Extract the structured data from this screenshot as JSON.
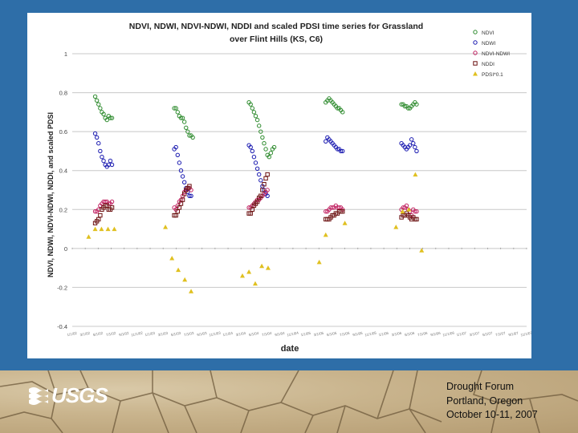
{
  "footer": {
    "logo_text": "USGS",
    "lines": [
      "Drought Forum",
      "Portland, Oregon",
      "October 10-11, 2007"
    ]
  },
  "chart_data": {
    "type": "scatter",
    "title_lines": [
      "NDVI, NDWI, NDVI-NDWI, NDDI and scaled PDSI time series for Grassland",
      "over Flint Hills (KS, C6)"
    ],
    "xlabel": "date",
    "ylabel": "NDVI, NDWI, NDVI-NDWI, NDDI, and scaled PDSI",
    "ylim": [
      -0.4,
      1.0
    ],
    "y_ticks": [
      1,
      0.8,
      0.6,
      0.4,
      0.2,
      0,
      -0.2,
      -0.4
    ],
    "y_tick_labels": [
      "1",
      "0.8",
      "0.6",
      "0.4",
      "0.2",
      "0",
      "-0.2",
      "-0.4"
    ],
    "grid": "horizontal",
    "legend_position": "top-right",
    "x_ticks": [
      "1/1/02",
      "3/1/02",
      "5/1/02",
      "7/1/02",
      "9/1/02",
      "11/1/02",
      "1/1/03",
      "3/1/03",
      "5/1/03",
      "7/1/03",
      "9/1/03",
      "11/1/03",
      "1/1/04",
      "3/1/04",
      "5/1/04",
      "7/1/04",
      "9/1/04",
      "11/1/04",
      "1/1/05",
      "3/1/05",
      "5/1/05",
      "7/1/05",
      "9/1/05",
      "11/1/05",
      "1/1/06",
      "3/1/06",
      "5/1/06",
      "7/1/06",
      "9/1/06",
      "11/1/06",
      "1/1/07",
      "3/1/07",
      "5/1/07",
      "7/1/07",
      "9/1/07",
      "11/1/07"
    ],
    "series": [
      {
        "name": "NDVI",
        "marker": "circle",
        "color": "#2e8b2e",
        "points": [
          [
            "2002-04-20",
            0.78
          ],
          [
            "2002-04-28",
            0.76
          ],
          [
            "2002-05-06",
            0.74
          ],
          [
            "2002-05-14",
            0.72
          ],
          [
            "2002-05-22",
            0.7
          ],
          [
            "2002-05-30",
            0.69
          ],
          [
            "2002-06-07",
            0.67
          ],
          [
            "2002-06-15",
            0.66
          ],
          [
            "2002-06-23",
            0.68
          ],
          [
            "2002-07-01",
            0.67
          ],
          [
            "2002-07-09",
            0.67
          ],
          [
            "2003-05-01",
            0.72
          ],
          [
            "2003-05-09",
            0.72
          ],
          [
            "2003-05-17",
            0.7
          ],
          [
            "2003-05-25",
            0.68
          ],
          [
            "2003-06-02",
            0.67
          ],
          [
            "2003-06-10",
            0.67
          ],
          [
            "2003-06-18",
            0.65
          ],
          [
            "2003-06-26",
            0.62
          ],
          [
            "2003-07-04",
            0.6
          ],
          [
            "2003-07-12",
            0.58
          ],
          [
            "2003-07-20",
            0.58
          ],
          [
            "2003-07-28",
            0.57
          ],
          [
            "2004-04-20",
            0.75
          ],
          [
            "2004-04-28",
            0.74
          ],
          [
            "2004-05-06",
            0.72
          ],
          [
            "2004-05-14",
            0.7
          ],
          [
            "2004-05-22",
            0.68
          ],
          [
            "2004-05-30",
            0.66
          ],
          [
            "2004-06-07",
            0.63
          ],
          [
            "2004-06-15",
            0.6
          ],
          [
            "2004-06-23",
            0.57
          ],
          [
            "2004-07-01",
            0.54
          ],
          [
            "2004-07-09",
            0.51
          ],
          [
            "2004-07-17",
            0.48
          ],
          [
            "2004-07-25",
            0.47
          ],
          [
            "2004-08-02",
            0.49
          ],
          [
            "2004-08-10",
            0.51
          ],
          [
            "2004-08-18",
            0.52
          ],
          [
            "2005-04-20",
            0.75
          ],
          [
            "2005-04-28",
            0.76
          ],
          [
            "2005-05-06",
            0.77
          ],
          [
            "2005-05-14",
            0.76
          ],
          [
            "2005-05-22",
            0.75
          ],
          [
            "2005-05-30",
            0.74
          ],
          [
            "2005-06-07",
            0.73
          ],
          [
            "2005-06-15",
            0.72
          ],
          [
            "2005-06-23",
            0.72
          ],
          [
            "2005-07-01",
            0.71
          ],
          [
            "2005-07-09",
            0.7
          ],
          [
            "2006-04-15",
            0.74
          ],
          [
            "2006-04-23",
            0.74
          ],
          [
            "2006-05-01",
            0.73
          ],
          [
            "2006-05-09",
            0.73
          ],
          [
            "2006-05-17",
            0.72
          ],
          [
            "2006-05-25",
            0.72
          ],
          [
            "2006-06-02",
            0.73
          ],
          [
            "2006-06-10",
            0.74
          ],
          [
            "2006-06-18",
            0.75
          ],
          [
            "2006-06-26",
            0.74
          ]
        ]
      },
      {
        "name": "NDWI",
        "marker": "circle",
        "color": "#1a1ab0",
        "points": [
          [
            "2002-04-20",
            0.59
          ],
          [
            "2002-04-28",
            0.57
          ],
          [
            "2002-05-06",
            0.54
          ],
          [
            "2002-05-14",
            0.5
          ],
          [
            "2002-05-22",
            0.47
          ],
          [
            "2002-05-30",
            0.45
          ],
          [
            "2002-06-07",
            0.43
          ],
          [
            "2002-06-15",
            0.42
          ],
          [
            "2002-06-23",
            0.43
          ],
          [
            "2002-07-01",
            0.45
          ],
          [
            "2002-07-09",
            0.43
          ],
          [
            "2003-05-01",
            0.51
          ],
          [
            "2003-05-09",
            0.52
          ],
          [
            "2003-05-17",
            0.48
          ],
          [
            "2003-05-25",
            0.44
          ],
          [
            "2003-06-02",
            0.4
          ],
          [
            "2003-06-10",
            0.37
          ],
          [
            "2003-06-18",
            0.34
          ],
          [
            "2003-06-26",
            0.31
          ],
          [
            "2003-07-04",
            0.29
          ],
          [
            "2003-07-12",
            0.27
          ],
          [
            "2003-07-20",
            0.27
          ],
          [
            "2004-04-20",
            0.53
          ],
          [
            "2004-04-28",
            0.52
          ],
          [
            "2004-05-06",
            0.5
          ],
          [
            "2004-05-14",
            0.47
          ],
          [
            "2004-05-22",
            0.44
          ],
          [
            "2004-05-30",
            0.41
          ],
          [
            "2004-06-07",
            0.38
          ],
          [
            "2004-06-15",
            0.35
          ],
          [
            "2004-06-23",
            0.32
          ],
          [
            "2004-07-01",
            0.3
          ],
          [
            "2004-07-09",
            0.28
          ],
          [
            "2004-07-17",
            0.27
          ],
          [
            "2005-04-20",
            0.55
          ],
          [
            "2005-04-28",
            0.57
          ],
          [
            "2005-05-06",
            0.56
          ],
          [
            "2005-05-14",
            0.55
          ],
          [
            "2005-05-22",
            0.54
          ],
          [
            "2005-05-30",
            0.53
          ],
          [
            "2005-06-07",
            0.52
          ],
          [
            "2005-06-15",
            0.51
          ],
          [
            "2005-06-23",
            0.51
          ],
          [
            "2005-07-01",
            0.5
          ],
          [
            "2005-07-09",
            0.5
          ],
          [
            "2006-04-15",
            0.54
          ],
          [
            "2006-04-23",
            0.53
          ],
          [
            "2006-05-01",
            0.52
          ],
          [
            "2006-05-09",
            0.51
          ],
          [
            "2006-05-17",
            0.52
          ],
          [
            "2006-05-25",
            0.53
          ],
          [
            "2006-06-02",
            0.56
          ],
          [
            "2006-06-10",
            0.54
          ],
          [
            "2006-06-18",
            0.52
          ],
          [
            "2006-06-26",
            0.5
          ]
        ]
      },
      {
        "name": "NDVI-NDWI",
        "marker": "circle",
        "color": "#c02060",
        "points": [
          [
            "2002-04-20",
            0.19
          ],
          [
            "2002-04-28",
            0.19
          ],
          [
            "2002-05-06",
            0.2
          ],
          [
            "2002-05-14",
            0.22
          ],
          [
            "2002-05-22",
            0.23
          ],
          [
            "2002-05-30",
            0.24
          ],
          [
            "2002-06-07",
            0.24
          ],
          [
            "2002-06-15",
            0.24
          ],
          [
            "2002-06-23",
            0.23
          ],
          [
            "2002-07-01",
            0.23
          ],
          [
            "2002-07-09",
            0.24
          ],
          [
            "2003-05-01",
            0.21
          ],
          [
            "2003-05-09",
            0.2
          ],
          [
            "2003-05-17",
            0.22
          ],
          [
            "2003-05-25",
            0.24
          ],
          [
            "2003-06-02",
            0.25
          ],
          [
            "2003-06-10",
            0.27
          ],
          [
            "2003-06-18",
            0.29
          ],
          [
            "2003-06-26",
            0.3
          ],
          [
            "2003-07-04",
            0.31
          ],
          [
            "2003-07-12",
            0.31
          ],
          [
            "2003-07-20",
            0.3
          ],
          [
            "2004-04-20",
            0.21
          ],
          [
            "2004-04-28",
            0.21
          ],
          [
            "2004-05-06",
            0.22
          ],
          [
            "2004-05-14",
            0.23
          ],
          [
            "2004-05-22",
            0.24
          ],
          [
            "2004-05-30",
            0.25
          ],
          [
            "2004-06-07",
            0.25
          ],
          [
            "2004-06-15",
            0.26
          ],
          [
            "2004-06-23",
            0.27
          ],
          [
            "2004-07-01",
            0.28
          ],
          [
            "2004-07-09",
            0.29
          ],
          [
            "2004-07-17",
            0.3
          ],
          [
            "2005-04-20",
            0.19
          ],
          [
            "2005-04-28",
            0.19
          ],
          [
            "2005-05-06",
            0.2
          ],
          [
            "2005-05-14",
            0.21
          ],
          [
            "2005-05-22",
            0.21
          ],
          [
            "2005-05-30",
            0.21
          ],
          [
            "2005-06-07",
            0.22
          ],
          [
            "2005-06-15",
            0.21
          ],
          [
            "2005-06-23",
            0.21
          ],
          [
            "2005-07-01",
            0.21
          ],
          [
            "2005-07-09",
            0.2
          ],
          [
            "2006-04-15",
            0.2
          ],
          [
            "2006-04-23",
            0.21
          ],
          [
            "2006-05-01",
            0.21
          ],
          [
            "2006-05-09",
            0.22
          ],
          [
            "2006-05-17",
            0.2
          ],
          [
            "2006-05-25",
            0.19
          ],
          [
            "2006-06-02",
            0.17
          ],
          [
            "2006-06-10",
            0.2
          ],
          [
            "2006-06-18",
            0.19
          ],
          [
            "2006-06-26",
            0.19
          ]
        ]
      },
      {
        "name": "NDDI",
        "marker": "square",
        "color": "#6b1010",
        "points": [
          [
            "2002-04-20",
            0.13
          ],
          [
            "2002-04-28",
            0.14
          ],
          [
            "2002-05-06",
            0.15
          ],
          [
            "2002-05-14",
            0.17
          ],
          [
            "2002-05-22",
            0.2
          ],
          [
            "2002-05-30",
            0.21
          ],
          [
            "2002-06-07",
            0.22
          ],
          [
            "2002-06-15",
            0.22
          ],
          [
            "2002-06-23",
            0.2
          ],
          [
            "2002-07-01",
            0.2
          ],
          [
            "2002-07-09",
            0.21
          ],
          [
            "2003-05-01",
            0.17
          ],
          [
            "2003-05-09",
            0.17
          ],
          [
            "2003-05-17",
            0.19
          ],
          [
            "2003-05-25",
            0.21
          ],
          [
            "2003-06-02",
            0.23
          ],
          [
            "2003-06-10",
            0.25
          ],
          [
            "2003-06-18",
            0.28
          ],
          [
            "2003-06-26",
            0.3
          ],
          [
            "2003-07-04",
            0.31
          ],
          [
            "2003-07-12",
            0.32
          ],
          [
            "2004-04-20",
            0.18
          ],
          [
            "2004-04-28",
            0.18
          ],
          [
            "2004-05-06",
            0.2
          ],
          [
            "2004-05-14",
            0.22
          ],
          [
            "2004-05-22",
            0.23
          ],
          [
            "2004-05-30",
            0.24
          ],
          [
            "2004-06-07",
            0.26
          ],
          [
            "2004-06-15",
            0.27
          ],
          [
            "2004-06-23",
            0.3
          ],
          [
            "2004-07-01",
            0.33
          ],
          [
            "2004-07-09",
            0.36
          ],
          [
            "2004-07-17",
            0.38
          ],
          [
            "2005-04-20",
            0.15
          ],
          [
            "2005-04-28",
            0.15
          ],
          [
            "2005-05-06",
            0.15
          ],
          [
            "2005-05-14",
            0.16
          ],
          [
            "2005-05-22",
            0.17
          ],
          [
            "2005-05-30",
            0.17
          ],
          [
            "2005-06-07",
            0.18
          ],
          [
            "2005-06-15",
            0.18
          ],
          [
            "2005-06-23",
            0.19
          ],
          [
            "2005-07-01",
            0.19
          ],
          [
            "2005-07-09",
            0.19
          ],
          [
            "2006-04-15",
            0.16
          ],
          [
            "2006-04-23",
            0.17
          ],
          [
            "2006-05-01",
            0.17
          ],
          [
            "2006-05-09",
            0.18
          ],
          [
            "2006-05-17",
            0.17
          ],
          [
            "2006-05-25",
            0.16
          ],
          [
            "2006-06-02",
            0.15
          ],
          [
            "2006-06-10",
            0.16
          ],
          [
            "2006-06-18",
            0.15
          ],
          [
            "2006-06-26",
            0.15
          ]
        ]
      },
      {
        "name": "PDSI*0.1",
        "marker": "triangle",
        "color": "#e0c020",
        "points": [
          [
            "2002-03-20",
            0.06
          ],
          [
            "2002-04-20",
            0.1
          ],
          [
            "2002-05-20",
            0.1
          ],
          [
            "2002-06-20",
            0.1
          ],
          [
            "2002-07-20",
            0.1
          ],
          [
            "2003-03-20",
            0.11
          ],
          [
            "2003-04-20",
            -0.05
          ],
          [
            "2003-05-20",
            -0.11
          ],
          [
            "2003-06-20",
            -0.16
          ],
          [
            "2003-07-20",
            -0.22
          ],
          [
            "2004-03-20",
            -0.14
          ],
          [
            "2004-04-20",
            -0.12
          ],
          [
            "2004-05-20",
            -0.18
          ],
          [
            "2004-06-20",
            -0.09
          ],
          [
            "2004-07-20",
            -0.1
          ],
          [
            "2005-03-20",
            -0.07
          ],
          [
            "2005-04-20",
            0.07
          ],
          [
            "2005-07-20",
            0.13
          ],
          [
            "2006-03-20",
            0.11
          ],
          [
            "2006-04-20",
            0.19
          ],
          [
            "2006-05-20",
            0.2
          ],
          [
            "2006-06-20",
            0.38
          ],
          [
            "2006-07-20",
            -0.01
          ]
        ]
      }
    ]
  }
}
